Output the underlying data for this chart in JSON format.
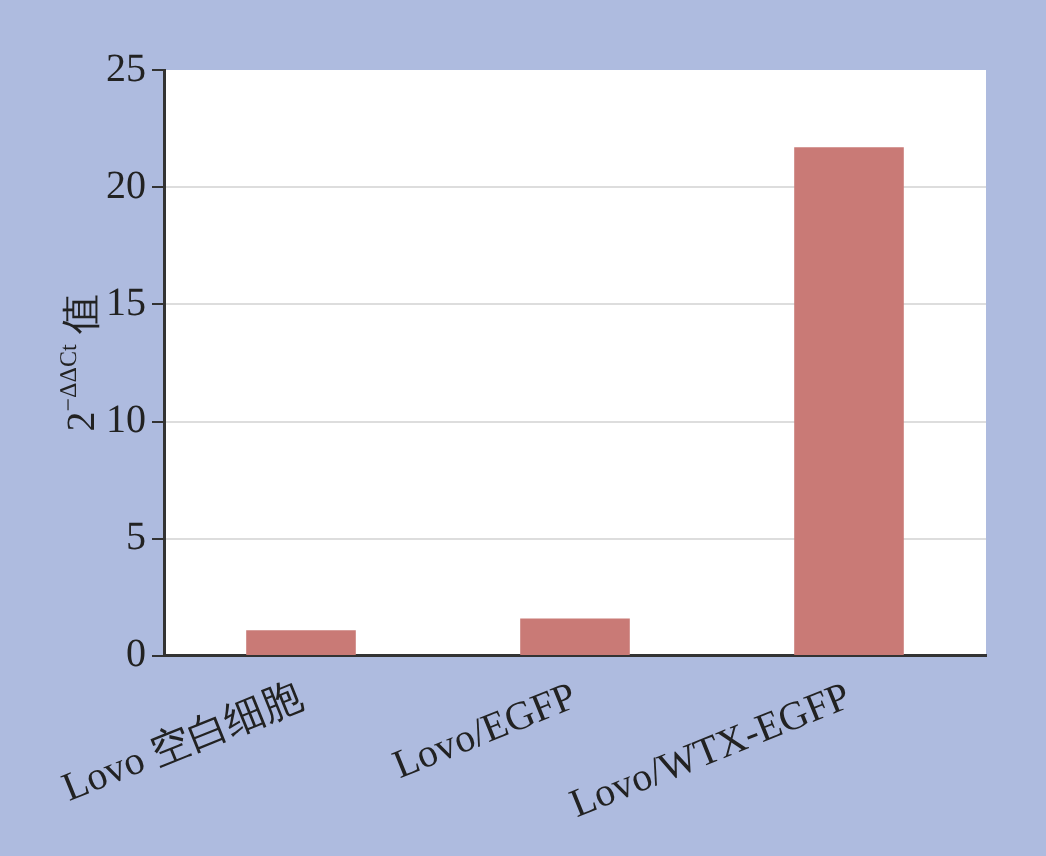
{
  "chart_data": {
    "type": "bar",
    "ylabel": "2$^{−ΔΔCt}$ 值",
    "categories": [
      "Lovo 空白细胞",
      "Lovo/EGFP",
      "Lovo/WTX-EGFP"
    ],
    "values": [
      1.1,
      1.6,
      21.7
    ],
    "color": "#c97a76",
    "ylim": [
      0,
      25
    ],
    "yticks": [
      0,
      5,
      10,
      15,
      20,
      25
    ],
    "grid": "y",
    "legend": false
  }
}
